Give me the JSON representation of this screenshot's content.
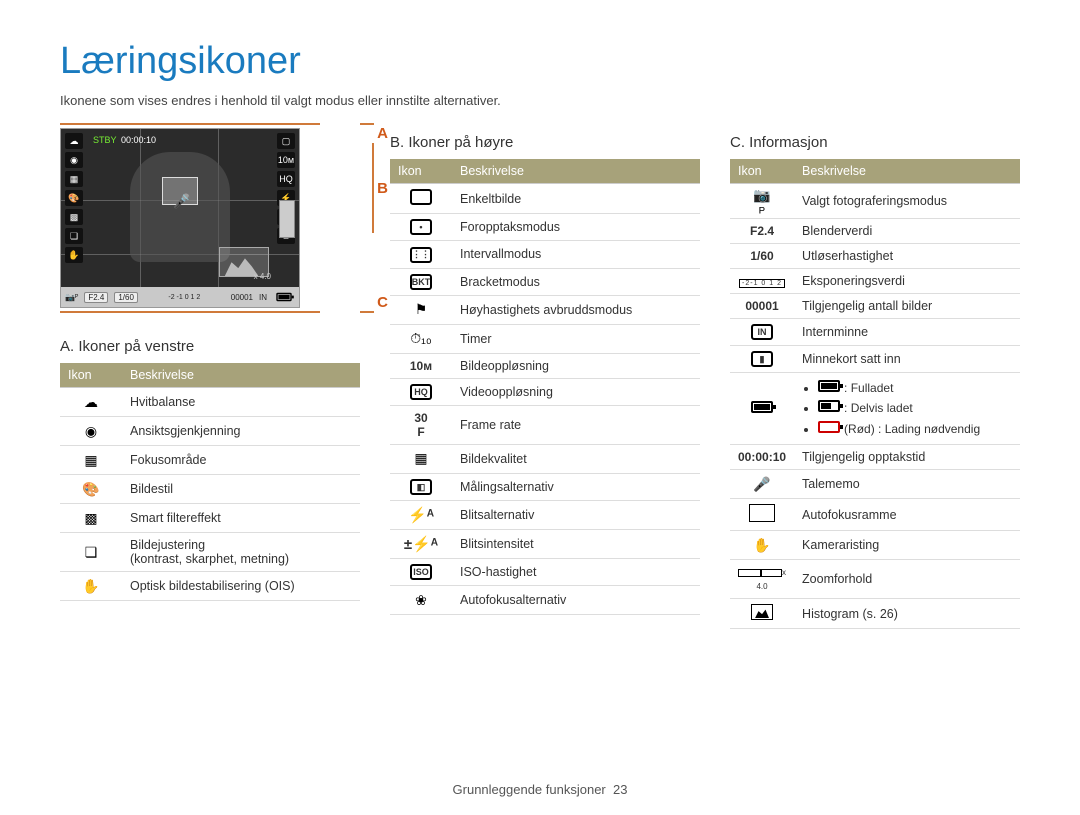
{
  "title": "Læringsikoner",
  "subtitle": "Ikonene som vises endres i henhold til valgt modus eller innstilte alternativer.",
  "markers": {
    "A": "A",
    "B": "B",
    "C": "C"
  },
  "screenshot": {
    "stby_label": "STBY",
    "stby_time": "00:00:10",
    "zoom_label": "x 4.0",
    "bottom": {
      "aperture": "F2.4",
      "shutter": "1/60",
      "counter": "00001"
    }
  },
  "sectionA": {
    "heading": "A. Ikoner på venstre",
    "cols": {
      "icon": "Ikon",
      "desc": "Beskrivelse"
    },
    "rows": [
      {
        "glyph": "☁",
        "desc": "Hvitbalanse"
      },
      {
        "glyph": "◉",
        "desc": "Ansiktsgjenkjenning"
      },
      {
        "glyph": "▦",
        "desc": "Fokusområde"
      },
      {
        "glyph": "🎨",
        "desc": "Bildestil"
      },
      {
        "glyph": "▩",
        "desc": "Smart filtereffekt"
      },
      {
        "glyph": "❏",
        "desc": "Bildejustering\n(kontrast, skarphet, metning)"
      },
      {
        "glyph": "✋",
        "desc": "Optisk bildestabilisering (OIS)"
      }
    ]
  },
  "sectionB": {
    "heading": "B. Ikoner på høyre",
    "cols": {
      "icon": "Ikon",
      "desc": "Beskrivelse"
    },
    "rows": [
      {
        "type": "box",
        "text": "",
        "desc": "Enkeltbilde"
      },
      {
        "type": "box",
        "text": "•",
        "desc": "Foropptaksmodus"
      },
      {
        "type": "box",
        "text": "⋮⋮",
        "desc": "Intervallmodus"
      },
      {
        "type": "box",
        "text": "BKT",
        "desc": "Bracketmodus"
      },
      {
        "type": "glyph",
        "text": "⚑",
        "desc": "Høyhastighets avbruddsmodus"
      },
      {
        "type": "glyph",
        "text": "⏱₁₀",
        "desc": "Timer"
      },
      {
        "type": "txt",
        "text": "10ᴍ",
        "desc": "Bildeoppløsning"
      },
      {
        "type": "box",
        "text": "HQ",
        "desc": "Videooppløsning"
      },
      {
        "type": "txt",
        "text": "30\nF",
        "desc": "Frame rate"
      },
      {
        "type": "glyph",
        "text": "▦",
        "desc": "Bildekvalitet"
      },
      {
        "type": "box",
        "text": "◧",
        "desc": "Målingsalternativ"
      },
      {
        "type": "flash",
        "text": "⚡ᴬ",
        "desc": "Blitsalternativ"
      },
      {
        "type": "flash",
        "text": "±⚡ᴬ",
        "desc": "Blitsintensitet"
      },
      {
        "type": "box",
        "text": "ISO",
        "desc": "ISO-hastighet"
      },
      {
        "type": "glyph",
        "text": "❀",
        "desc": "Autofokusalternativ"
      }
    ]
  },
  "sectionC": {
    "heading": "C. Informasjon",
    "cols": {
      "icon": "Ikon",
      "desc": "Beskrivelse"
    },
    "rows": [
      {
        "type": "glyph",
        "text": "📷ᴾ",
        "desc": "Valgt fotograferingsmodus"
      },
      {
        "type": "txt",
        "text": "F2.4",
        "desc": "Blenderverdi"
      },
      {
        "type": "txt",
        "text": "1/60",
        "desc": "Utløserhastighet"
      },
      {
        "type": "ev",
        "text": "-2-1 0 1 2",
        "desc": "Eksponeringsverdi"
      },
      {
        "type": "txt",
        "text": "00001",
        "desc": "Tilgjengelig antall bilder"
      },
      {
        "type": "box",
        "text": "IN",
        "desc": "Internminne"
      },
      {
        "type": "box",
        "text": "▮",
        "desc": "Minnekort satt inn"
      },
      {
        "type": "battery",
        "desc_items": [
          {
            "level": "f3",
            "label": ": Fulladet"
          },
          {
            "level": "f2",
            "label": ": Delvis ladet"
          },
          {
            "level": "f0",
            "red": true,
            "label": "(Rød) : Lading nødvendig"
          }
        ]
      },
      {
        "type": "txt",
        "text": "00:00:10",
        "desc": "Tilgjengelig opptakstid"
      },
      {
        "type": "glyph",
        "text": "🎤",
        "desc": "Talememo"
      },
      {
        "type": "rect",
        "desc": "Autofokusramme"
      },
      {
        "type": "glyph",
        "text": "✋",
        "desc": "Kameraristing"
      },
      {
        "type": "zoom",
        "text": "x 4.0",
        "desc": "Zoomforhold"
      },
      {
        "type": "hist",
        "desc": "Histogram (s. 26)"
      }
    ]
  },
  "footer": {
    "text": "Grunnleggende funksjoner",
    "page": "23"
  }
}
